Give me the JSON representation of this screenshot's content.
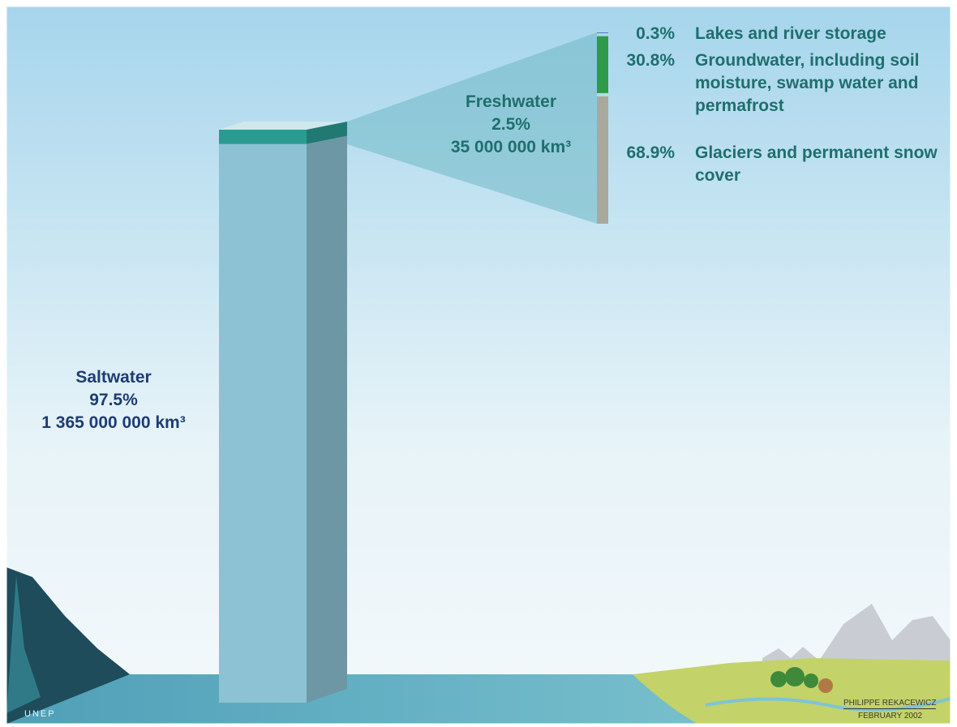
{
  "chart_data": [
    {
      "type": "stacked_column",
      "series": [
        {
          "name": "Saltwater",
          "values": [
            97.5
          ],
          "value_labels": [
            "97.5%"
          ],
          "volume": "1 365 000 000 km³",
          "color": "#8cc2d3"
        },
        {
          "name": "Freshwater",
          "values": [
            2.5
          ],
          "value_labels": [
            "2.5%"
          ],
          "volume": "35 000 000 km³",
          "color": "#2a9b93"
        }
      ]
    },
    {
      "type": "stacked_column",
      "series": [
        {
          "name": "Lakes and river storage",
          "values": [
            0.3
          ],
          "value_labels": [
            "0.3%"
          ],
          "color": "#2b4f9e"
        },
        {
          "name": "Groundwater, including soil moisture, swamp water and permafrost",
          "values": [
            30.8
          ],
          "value_labels": [
            "30.8%"
          ],
          "color": "#2f9a4a"
        },
        {
          "name": "Glaciers and permanent snow cover",
          "values": [
            68.9
          ],
          "value_labels": [
            "68.9%"
          ],
          "color": "#a9a89c"
        }
      ]
    }
  ],
  "credits": {
    "logo": "UNEP",
    "author": "PHILIPPE REKACEWICZ",
    "date": "FEBRUARY 2002"
  }
}
